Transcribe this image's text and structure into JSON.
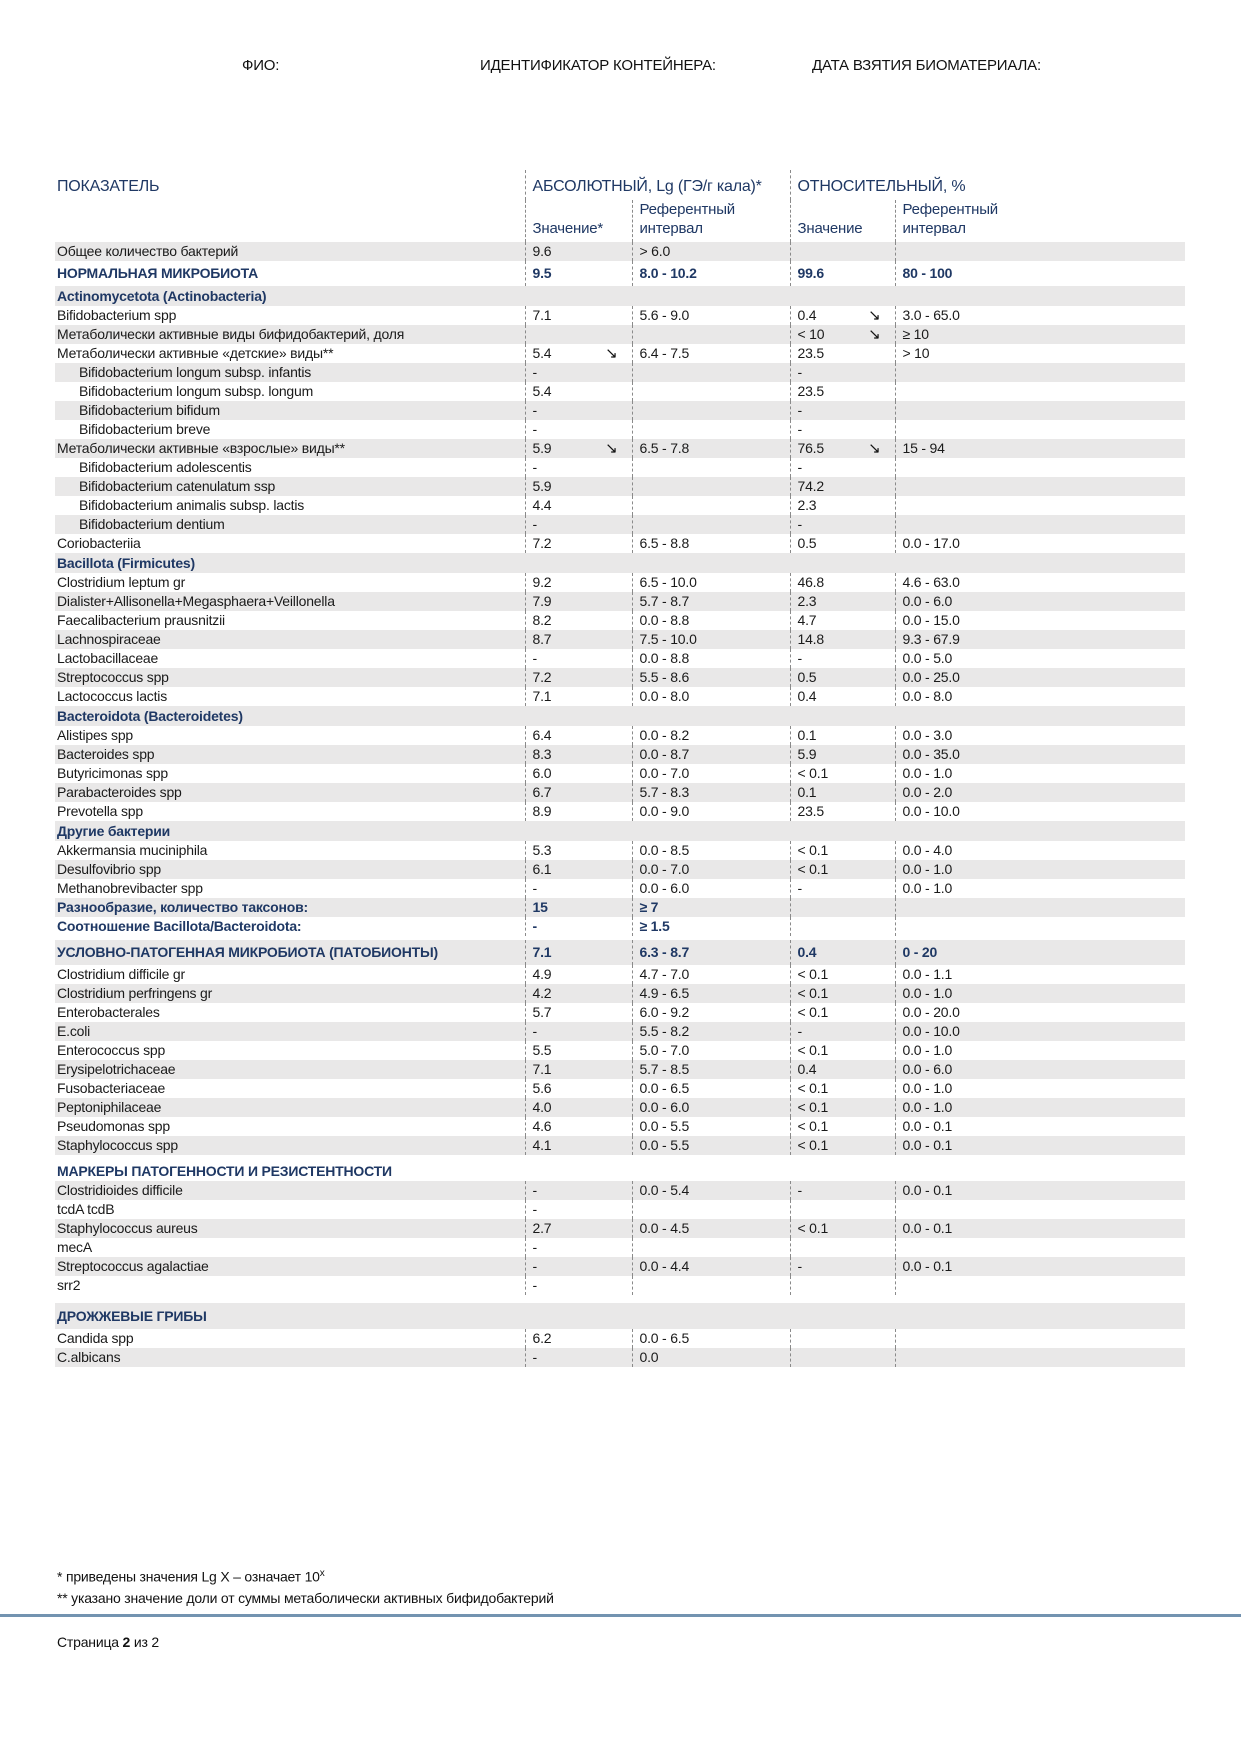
{
  "meta": {
    "fio_label": "ФИО:",
    "container_label": "ИДЕНТИФИКАТОР КОНТЕЙНЕРА:",
    "date_label": "ДАТА ВЗЯТИЯ БИОМАТЕРИАЛА:"
  },
  "colors": {
    "navy": "#1f3864",
    "row_shade": "#e9e8e8",
    "dash_border": "#8a8a8a",
    "divider_blue": "#7393b0"
  },
  "table": {
    "arrow_char": "↘",
    "header": {
      "indicator": "ПОКАЗАТЕЛЬ",
      "absolute": "АБСОЛЮТНЫЙ, Lg (ГЭ/г кала)*",
      "relative": "ОТНОСИТЕЛЬНЫЙ, %",
      "abs_value": "Значение*",
      "ref_interval_abs": "Референтный\nинтервал",
      "rel_value": "Значение",
      "ref_interval_rel": "Референтный\nинтервал"
    },
    "rows": [
      {
        "name": "Общее количество бактерий",
        "type": "row",
        "shade": true,
        "abs": "9.6",
        "abs_ref": "> 6.0",
        "rel": "",
        "rel_ref": ""
      },
      {
        "name": "НОРМАЛЬНАЯ МИКРОБИОТА",
        "type": "major",
        "shade": false,
        "tall": true,
        "abs": "9.5",
        "abs_ref": "8.0 - 10.2",
        "rel": "99.6",
        "rel_ref": "80 - 100"
      },
      {
        "name": "Actinomycetota (Actinobacteria)",
        "type": "section",
        "shade": true
      },
      {
        "name": "Bifidobacterium spp",
        "type": "row",
        "shade": false,
        "abs": "7.1",
        "abs_ref": "5.6 - 9.0",
        "rel": "0.4",
        "rel_arrow": true,
        "rel_ref": "3.0 - 65.0"
      },
      {
        "name": "Метаболически активные виды бифидобактерий, доля",
        "type": "row",
        "shade": true,
        "abs": "",
        "abs_ref": "",
        "rel": "< 10",
        "rel_arrow": true,
        "rel_ref": "≥ 10"
      },
      {
        "name": "Метаболически активные «детские» виды**",
        "type": "row",
        "shade": false,
        "abs": "5.4",
        "abs_arrow": true,
        "abs_ref": "6.4 - 7.5",
        "rel": "23.5",
        "rel_ref": "> 10"
      },
      {
        "name": "Bifidobacterium longum subsp. infantis",
        "type": "row",
        "indent": true,
        "shade": true,
        "abs": "-",
        "abs_ref": "",
        "rel": "-",
        "rel_ref": ""
      },
      {
        "name": "Bifidobacterium longum subsp. longum",
        "type": "row",
        "indent": true,
        "shade": false,
        "abs": "5.4",
        "abs_ref": "",
        "rel": "23.5",
        "rel_ref": ""
      },
      {
        "name": "Bifidobacterium bifidum",
        "type": "row",
        "indent": true,
        "shade": true,
        "abs": "-",
        "abs_ref": "",
        "rel": "-",
        "rel_ref": ""
      },
      {
        "name": "Bifidobacterium breve",
        "type": "row",
        "indent": true,
        "shade": false,
        "abs": "-",
        "abs_ref": "",
        "rel": "-",
        "rel_ref": ""
      },
      {
        "name": "Метаболически активные «взрослые» виды**",
        "type": "row",
        "shade": true,
        "abs": "5.9",
        "abs_arrow": true,
        "abs_ref": "6.5 - 7.8",
        "rel": "76.5",
        "rel_arrow": true,
        "rel_ref": "15 - 94"
      },
      {
        "name": "Bifidobacterium adolescentis",
        "type": "row",
        "indent": true,
        "shade": false,
        "abs": "-",
        "abs_ref": "",
        "rel": "-",
        "rel_ref": ""
      },
      {
        "name": "Bifidobacterium catenulatum ssp",
        "type": "row",
        "indent": true,
        "shade": true,
        "abs": "5.9",
        "abs_ref": "",
        "rel": "74.2",
        "rel_ref": ""
      },
      {
        "name": "Bifidobacterium animalis subsp. lactis",
        "type": "row",
        "indent": true,
        "shade": false,
        "abs": "4.4",
        "abs_ref": "",
        "rel": "2.3",
        "rel_ref": ""
      },
      {
        "name": "Bifidobacterium dentium",
        "type": "row",
        "indent": true,
        "shade": true,
        "abs": "-",
        "abs_ref": "",
        "rel": "-",
        "rel_ref": ""
      },
      {
        "name": "Coriobacteriia",
        "type": "row",
        "shade": false,
        "abs": "7.2",
        "abs_ref": "6.5 - 8.8",
        "rel": "0.5",
        "rel_ref": "0.0 - 17.0"
      },
      {
        "name": "Bacillota (Firmicutes)",
        "type": "section",
        "shade": true
      },
      {
        "name": "Clostridium leptum gr",
        "type": "row",
        "shade": false,
        "abs": "9.2",
        "abs_ref": "6.5 - 10.0",
        "rel": "46.8",
        "rel_ref": "4.6 - 63.0"
      },
      {
        "name": "Dialister+Allisonella+Megasphaera+Veillonella",
        "type": "row",
        "shade": true,
        "abs": "7.9",
        "abs_ref": "5.7 - 8.7",
        "rel": "2.3",
        "rel_ref": "0.0 - 6.0"
      },
      {
        "name": "Faecalibacterium prausnitzii",
        "type": "row",
        "shade": false,
        "abs": "8.2",
        "abs_ref": "0.0 - 8.8",
        "rel": "4.7",
        "rel_ref": "0.0 - 15.0"
      },
      {
        "name": "Lachnospiraceae",
        "type": "row",
        "shade": true,
        "abs": "8.7",
        "abs_ref": "7.5 - 10.0",
        "rel": "14.8",
        "rel_ref": "9.3 - 67.9"
      },
      {
        "name": "Lactobacillaceae",
        "type": "row",
        "shade": false,
        "abs": "-",
        "abs_ref": "0.0 - 8.8",
        "rel": "-",
        "rel_ref": "0.0 - 5.0"
      },
      {
        "name": "Streptococcus spp",
        "type": "row",
        "shade": true,
        "abs": "7.2",
        "abs_ref": "5.5 - 8.6",
        "rel": "0.5",
        "rel_ref": "0.0 - 25.0"
      },
      {
        "name": "Lactococcus lactis",
        "type": "row",
        "shade": false,
        "abs": "7.1",
        "abs_ref": "0.0 - 8.0",
        "rel": "0.4",
        "rel_ref": "0.0 - 8.0"
      },
      {
        "name": "Bacteroidota (Bacteroidetes)",
        "type": "section",
        "shade": true
      },
      {
        "name": "Alistipes spp",
        "type": "row",
        "shade": false,
        "abs": "6.4",
        "abs_ref": "0.0 - 8.2",
        "rel": "0.1",
        "rel_ref": "0.0 - 3.0"
      },
      {
        "name": "Bacteroides spp",
        "type": "row",
        "shade": true,
        "abs": "8.3",
        "abs_ref": "0.0 - 8.7",
        "rel": "5.9",
        "rel_ref": "0.0 - 35.0"
      },
      {
        "name": "Butyricimonas spp",
        "type": "row",
        "shade": false,
        "abs": "6.0",
        "abs_ref": "0.0 - 7.0",
        "rel": "< 0.1",
        "rel_ref": "0.0 - 1.0"
      },
      {
        "name": "Parabacteroides spp",
        "type": "row",
        "shade": true,
        "abs": "6.7",
        "abs_ref": "5.7 - 8.3",
        "rel": "0.1",
        "rel_ref": "0.0 - 2.0"
      },
      {
        "name": "Prevotella spp",
        "type": "row",
        "shade": false,
        "abs": "8.9",
        "abs_ref": "0.0 - 9.0",
        "rel": "23.5",
        "rel_ref": "0.0 - 10.0"
      },
      {
        "name": "Другие бактерии",
        "type": "section",
        "shade": true
      },
      {
        "name": "Akkermansia muciniphila",
        "type": "row",
        "shade": false,
        "abs": "5.3",
        "abs_ref": "0.0 - 8.5",
        "rel": "< 0.1",
        "rel_ref": "0.0 - 4.0"
      },
      {
        "name": "Desulfovibrio spp",
        "type": "row",
        "shade": true,
        "abs": "6.1",
        "abs_ref": "0.0 - 7.0",
        "rel": "< 0.1",
        "rel_ref": "0.0 - 1.0"
      },
      {
        "name": "Methanobrevibacter spp",
        "type": "row",
        "shade": false,
        "abs": "-",
        "abs_ref": "0.0 - 6.0",
        "rel": "-",
        "rel_ref": "0.0 - 1.0"
      },
      {
        "name": "Разнообразие, количество таксонов:",
        "type": "major",
        "shade": true,
        "abs": "15",
        "abs_ref": "≥ 7",
        "rel": "",
        "rel_ref": ""
      },
      {
        "name": "Соотношение Bacillota/Bacteroidota:",
        "type": "major",
        "shade": false,
        "abs": "-",
        "abs_ref": "≥ 1.5",
        "rel": "",
        "rel_ref": ""
      },
      {
        "name": "УСЛОВНО-ПАТОГЕННАЯ МИКРОБИОТА (ПАТОБИОНТЫ)",
        "type": "major",
        "shade": true,
        "tall": true,
        "gap_before": 4,
        "abs": "7.1",
        "abs_ref": "6.3 - 8.7",
        "rel": "0.4",
        "rel_ref": "0 - 20"
      },
      {
        "name": "Clostridium difficile gr",
        "type": "row",
        "shade": false,
        "abs": "4.9",
        "abs_ref": "4.7 - 7.0",
        "rel": "< 0.1",
        "rel_ref": "0.0 - 1.1"
      },
      {
        "name": "Clostridium perfringens gr",
        "type": "row",
        "shade": true,
        "abs": "4.2",
        "abs_ref": "4.9 - 6.5",
        "rel": "< 0.1",
        "rel_ref": "0.0 - 1.0"
      },
      {
        "name": "Enterobacterales",
        "type": "row",
        "shade": false,
        "abs": "5.7",
        "abs_ref": "6.0 - 9.2",
        "rel": "< 0.1",
        "rel_ref": "0.0 - 20.0"
      },
      {
        "name": "E.coli",
        "type": "row",
        "shade": true,
        "abs": "-",
        "abs_ref": "5.5 - 8.2",
        "rel": "-",
        "rel_ref": "0.0 - 10.0"
      },
      {
        "name": "Enterococcus spp",
        "type": "row",
        "shade": false,
        "abs": "5.5",
        "abs_ref": "5.0 - 7.0",
        "rel": "< 0.1",
        "rel_ref": "0.0 - 1.0"
      },
      {
        "name": "Erysipelotrichaceae",
        "type": "row",
        "shade": true,
        "abs": "7.1",
        "abs_ref": "5.7 - 8.5",
        "rel": "0.4",
        "rel_ref": "0.0 - 6.0"
      },
      {
        "name": "Fusobacteriaceae",
        "type": "row",
        "shade": false,
        "abs": "5.6",
        "abs_ref": "0.0 - 6.5",
        "rel": "< 0.1",
        "rel_ref": "0.0 - 1.0"
      },
      {
        "name": "Peptoniphilaceae",
        "type": "row",
        "shade": true,
        "abs": "4.0",
        "abs_ref": "0.0 - 6.0",
        "rel": "< 0.1",
        "rel_ref": "0.0 - 1.0"
      },
      {
        "name": "Pseudomonas spp",
        "type": "row",
        "shade": false,
        "abs": "4.6",
        "abs_ref": "0.0 - 5.5",
        "rel": "< 0.1",
        "rel_ref": "0.0 - 0.1"
      },
      {
        "name": "Staphylococcus spp",
        "type": "row",
        "shade": true,
        "abs": "4.1",
        "abs_ref": "0.0 - 5.5",
        "rel": "< 0.1",
        "rel_ref": "0.0 - 0.1"
      },
      {
        "name": "МАРКЕРЫ ПАТОГЕННОСТИ И РЕЗИСТЕНТНОСТИ",
        "type": "section",
        "shade": false,
        "gap_before": 6
      },
      {
        "name": "Clostridioides difficile",
        "type": "row",
        "shade": true,
        "abs": "-",
        "abs_ref": "0.0 - 5.4",
        "rel": "-",
        "rel_ref": "0.0 - 0.1"
      },
      {
        "name": "tcdA tcdB",
        "type": "row",
        "shade": false,
        "abs": "-",
        "abs_ref": "",
        "rel": "",
        "rel_ref": ""
      },
      {
        "name": "Staphylococcus aureus",
        "type": "row",
        "shade": true,
        "abs": "2.7",
        "abs_ref": "0.0 - 4.5",
        "rel": "< 0.1",
        "rel_ref": "0.0 - 0.1"
      },
      {
        "name": "mecA",
        "type": "row",
        "shade": false,
        "abs": "-",
        "abs_ref": "",
        "rel": "",
        "rel_ref": ""
      },
      {
        "name": "Streptococcus agalactiae",
        "type": "row",
        "shade": true,
        "abs": "-",
        "abs_ref": "0.0 - 4.4",
        "rel": "-",
        "rel_ref": "0.0 - 0.1"
      },
      {
        "name": "srr2",
        "type": "row",
        "shade": false,
        "abs": "-",
        "abs_ref": "",
        "rel": "",
        "rel_ref": ""
      },
      {
        "name": "ДРОЖЖЕВЫЕ ГРИБЫ",
        "type": "section",
        "shade": true,
        "tall": true,
        "gap_before": 8
      },
      {
        "name": "Candida spp",
        "type": "row",
        "shade": false,
        "abs": "6.2",
        "abs_ref": "0.0 - 6.5",
        "rel": "",
        "rel_ref": ""
      },
      {
        "name": "C.albicans",
        "type": "row",
        "shade": true,
        "abs": "-",
        "abs_ref": "0.0",
        "rel": "",
        "rel_ref": ""
      }
    ]
  },
  "footnotes": {
    "fn1_main": "* приведены значения Lg X – означает 10",
    "fn1_sup": "x",
    "fn2": "** указано значение доли от суммы метаболически активных бифидобактерий"
  },
  "pagination": {
    "prefix": "Страница ",
    "current": "2",
    "middle": " из ",
    "total": "2"
  }
}
